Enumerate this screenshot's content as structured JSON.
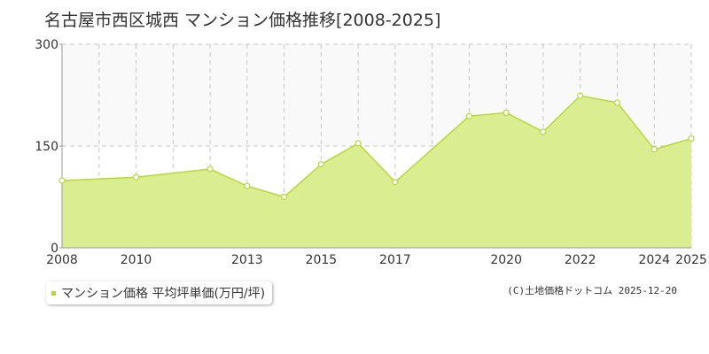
{
  "title": "名古屋市西区城西 マンション価格推移[2008-2025]",
  "legend": {
    "label": "マンション価格 平均坪単価(万円/坪)",
    "color": "#b7d93c"
  },
  "credit": "(C)土地価格ドットコム 2025-12-20",
  "chart_data": {
    "type": "area",
    "x": [
      2008,
      2010,
      2012,
      2013,
      2014,
      2015,
      2016,
      2017,
      2019,
      2020,
      2021,
      2022,
      2023,
      2024,
      2025
    ],
    "series": [
      {
        "name": "マンション価格 平均坪単価(万円/坪)",
        "values": [
          99,
          104,
          116,
          91,
          75,
          123,
          154,
          97,
          194,
          199,
          171,
          224,
          214,
          145,
          161
        ]
      }
    ],
    "xtick_labels": [
      "2008",
      "2010",
      "2013",
      "2015",
      "2017",
      "2020",
      "2022",
      "2024",
      "2025"
    ],
    "ytick_labels": [
      "0",
      "150",
      "300"
    ],
    "xlim": [
      2008,
      2025
    ],
    "ylim": [
      0,
      300
    ],
    "grid": true,
    "line_color": "#b7d93c",
    "fill_color": "#dbed91",
    "highlight_band_color": "#f9f9f9",
    "legend_position": "bottom-left"
  }
}
